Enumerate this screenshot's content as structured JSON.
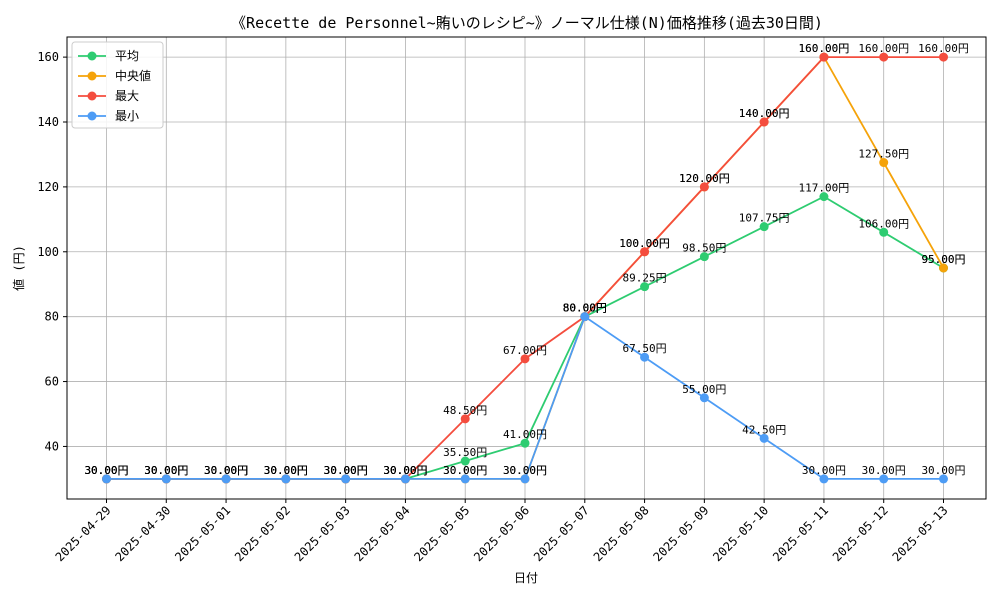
{
  "chart_data": {
    "type": "line",
    "title": "《Recette de Personnel~賄いのレシピ~》ノーマル仕様(N)価格推移(過去30日間)",
    "xlabel": "日付",
    "ylabel": "値 (円)",
    "ylim": [
      23.8,
      166.2
    ],
    "yticks": [
      40,
      60,
      80,
      100,
      120,
      140,
      160
    ],
    "grid": true,
    "legend_position": "top-left",
    "value_suffix": "円",
    "categories": [
      "2025-04-29",
      "2025-04-30",
      "2025-05-01",
      "2025-05-02",
      "2025-05-03",
      "2025-05-04",
      "2025-05-05",
      "2025-05-06",
      "2025-05-07",
      "2025-05-08",
      "2025-05-09",
      "2025-05-10",
      "2025-05-11",
      "2025-05-12",
      "2025-05-13"
    ],
    "series": [
      {
        "name": "平均",
        "color": "#2ecc71",
        "values": [
          30,
          30,
          30,
          30,
          30,
          30,
          35.5,
          41,
          80,
          89.25,
          98.5,
          107.75,
          117,
          106,
          95
        ]
      },
      {
        "name": "中央値",
        "color": "#f5a30a",
        "values": [
          30,
          30,
          30,
          30,
          30,
          30,
          30,
          30,
          80,
          100,
          120,
          140,
          160,
          127.5,
          95
        ]
      },
      {
        "name": "最大",
        "color": "#f44d3e",
        "values": [
          30,
          30,
          30,
          30,
          30,
          30,
          48.5,
          67,
          80,
          100,
          120,
          140,
          160,
          160,
          160
        ]
      },
      {
        "name": "最小",
        "color": "#4d9cf5",
        "values": [
          30,
          30,
          30,
          30,
          30,
          30,
          30,
          30,
          80,
          67.5,
          55,
          42.5,
          30,
          30,
          30
        ]
      }
    ]
  }
}
